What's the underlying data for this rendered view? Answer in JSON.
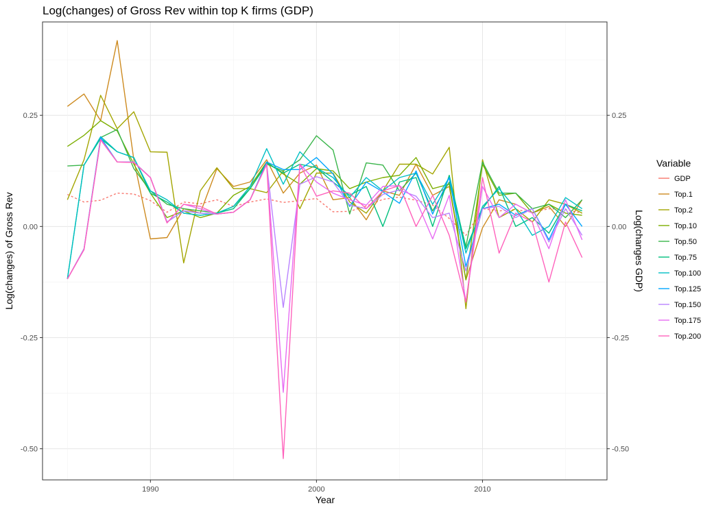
{
  "chart_data": {
    "type": "line",
    "title": "Log(changes) of Gross Rev within top K firms (GDP)",
    "xlabel": "Year",
    "ylabel": "Log(changes) of Gross Rev",
    "ylabel_right": "Log(changes GDP)",
    "xlim": [
      1983.5,
      2017.5
    ],
    "ylim": [
      -0.57,
      0.46
    ],
    "x_ticks": [
      1990,
      2000,
      2010
    ],
    "x_tick_labels": [
      "1990",
      "2000",
      "2010"
    ],
    "y_ticks": [
      0.25,
      0.0,
      -0.25,
      -0.5
    ],
    "y_tick_labels": [
      "0.25",
      "0.00",
      "-0.25",
      "-0.50"
    ],
    "y_ticks_right": [
      0.25,
      0.0,
      -0.25,
      -0.5
    ],
    "y_tick_labels_right": [
      "0.25",
      "0.00",
      "-0.25",
      "-0.50"
    ],
    "grid": true,
    "legend_position": "right",
    "legend_title": "Variable",
    "years": [
      1985,
      1986,
      1987,
      1988,
      1989,
      1990,
      1991,
      1992,
      1993,
      1994,
      1995,
      1996,
      1997,
      1998,
      1999,
      2000,
      2001,
      2002,
      2003,
      2004,
      2005,
      2006,
      2007,
      2008,
      2009,
      2010,
      2011,
      2012,
      2013,
      2014,
      2015,
      2016
    ],
    "series": [
      {
        "name": "GDP",
        "color": "#F8766D",
        "dashed": true,
        "values": [
          0.072,
          0.055,
          0.059,
          0.075,
          0.073,
          0.058,
          0.032,
          0.055,
          0.051,
          0.06,
          0.045,
          0.055,
          0.062,
          0.054,
          0.058,
          0.063,
          0.033,
          0.034,
          0.046,
          0.061,
          0.066,
          0.059,
          0.048,
          0.018,
          -0.02,
          0.04,
          0.035,
          0.038,
          0.032,
          0.04,
          0.038,
          0.03
        ]
      },
      {
        "name": "Top.1",
        "color": "#CD8A1F",
        "values": [
          0.27,
          0.298,
          0.238,
          0.418,
          0.15,
          -0.028,
          -0.025,
          0.04,
          0.03,
          0.13,
          0.09,
          0.1,
          0.15,
          0.075,
          0.12,
          0.138,
          0.06,
          0.065,
          0.015,
          0.08,
          0.07,
          0.14,
          0.07,
          0.09,
          -0.12,
          -0.003,
          0.06,
          0.05,
          0.03,
          0.045,
          0.0,
          0.06
        ]
      },
      {
        "name": "Top.2",
        "color": "#A3A500",
        "values": [
          0.06,
          0.15,
          0.295,
          0.22,
          0.258,
          0.168,
          0.167,
          -0.082,
          0.08,
          0.132,
          0.085,
          0.085,
          0.076,
          0.125,
          0.04,
          0.12,
          0.12,
          0.055,
          0.03,
          0.08,
          0.14,
          0.14,
          0.118,
          0.178,
          -0.185,
          0.15,
          0.02,
          0.04,
          0.01,
          0.06,
          0.05,
          0.03
        ]
      },
      {
        "name": "Top.10",
        "color": "#7CAE00",
        "values": [
          0.18,
          0.205,
          0.238,
          0.215,
          0.14,
          0.075,
          0.02,
          0.035,
          0.02,
          0.03,
          0.07,
          0.09,
          0.145,
          0.118,
          0.095,
          0.13,
          0.125,
          0.085,
          0.1,
          0.11,
          0.115,
          0.155,
          0.085,
          0.095,
          -0.12,
          0.14,
          0.07,
          0.075,
          0.03,
          0.05,
          0.03,
          0.025
        ]
      },
      {
        "name": "Top.50",
        "color": "#39B54A",
        "values": [
          0.136,
          0.138,
          0.2,
          0.218,
          0.13,
          0.08,
          0.05,
          0.04,
          0.035,
          0.03,
          0.045,
          0.085,
          0.14,
          0.125,
          0.15,
          0.204,
          0.172,
          0.028,
          0.143,
          0.138,
          0.08,
          0.12,
          0.035,
          0.1,
          -0.045,
          0.145,
          0.075,
          0.075,
          0.04,
          0.05,
          0.02,
          0.06
        ]
      },
      {
        "name": "Top.75",
        "color": "#00BF7D",
        "values": [
          -0.118,
          0.138,
          0.198,
          0.168,
          0.155,
          0.075,
          0.055,
          0.03,
          0.025,
          0.03,
          0.04,
          0.085,
          0.143,
          0.12,
          0.14,
          0.132,
          0.1,
          0.07,
          0.09,
          0.0,
          0.1,
          0.11,
          0.0,
          0.115,
          -0.05,
          0.04,
          0.09,
          0.0,
          0.02,
          -0.015,
          0.05,
          0.035
        ]
      },
      {
        "name": "Top.100",
        "color": "#00BFC4",
        "values": [
          -0.118,
          0.138,
          0.202,
          0.168,
          0.155,
          0.08,
          0.06,
          0.03,
          0.025,
          0.03,
          0.045,
          0.09,
          0.175,
          0.095,
          0.168,
          0.132,
          0.11,
          0.065,
          0.11,
          0.08,
          0.11,
          0.12,
          0.05,
          0.11,
          -0.06,
          0.045,
          0.085,
          0.04,
          -0.02,
          0.0,
          0.065,
          0.04
        ]
      },
      {
        "name": "Top.125",
        "color": "#00A5FF",
        "values": [
          -0.118,
          -0.05,
          0.2,
          0.145,
          0.145,
          0.11,
          0.01,
          0.035,
          0.03,
          0.028,
          0.032,
          0.06,
          0.145,
          0.128,
          0.128,
          0.155,
          0.118,
          0.045,
          0.1,
          0.078,
          0.052,
          0.125,
          0.028,
          0.11,
          -0.09,
          0.04,
          0.05,
          0.025,
          0.04,
          -0.03,
          0.05,
          0.0
        ]
      },
      {
        "name": "Top.150",
        "color": "#B983FF",
        "values": [
          -0.118,
          -0.05,
          0.196,
          0.145,
          0.145,
          0.11,
          0.01,
          0.035,
          0.03,
          0.028,
          0.032,
          0.06,
          0.14,
          -0.182,
          0.095,
          0.112,
          0.1,
          0.048,
          0.04,
          0.072,
          0.082,
          0.068,
          0.02,
          0.03,
          -0.1,
          0.04,
          0.045,
          0.02,
          0.04,
          -0.035,
          0.04,
          -0.02
        ]
      },
      {
        "name": "Top.175",
        "color": "#E76BF3",
        "values": [
          -0.118,
          -0.052,
          0.195,
          0.145,
          0.144,
          0.11,
          0.008,
          0.05,
          0.04,
          0.028,
          0.032,
          0.06,
          0.14,
          -0.373,
          0.14,
          0.1,
          0.075,
          0.06,
          0.048,
          0.09,
          0.092,
          0.06,
          -0.028,
          0.07,
          -0.17,
          0.09,
          0.02,
          0.05,
          0.03,
          -0.05,
          0.06,
          -0.03
        ]
      },
      {
        "name": "Top.200",
        "color": "#FF62BC",
        "values": [
          -0.118,
          -0.052,
          0.195,
          0.145,
          0.144,
          0.11,
          0.008,
          0.05,
          0.045,
          0.028,
          0.032,
          0.06,
          0.14,
          -0.522,
          0.14,
          0.068,
          0.08,
          0.075,
          0.04,
          0.08,
          0.092,
          0.0,
          0.07,
          -0.02,
          -0.17,
          0.11,
          -0.06,
          0.03,
          0.01,
          -0.125,
          0.01,
          -0.07
        ]
      }
    ]
  }
}
